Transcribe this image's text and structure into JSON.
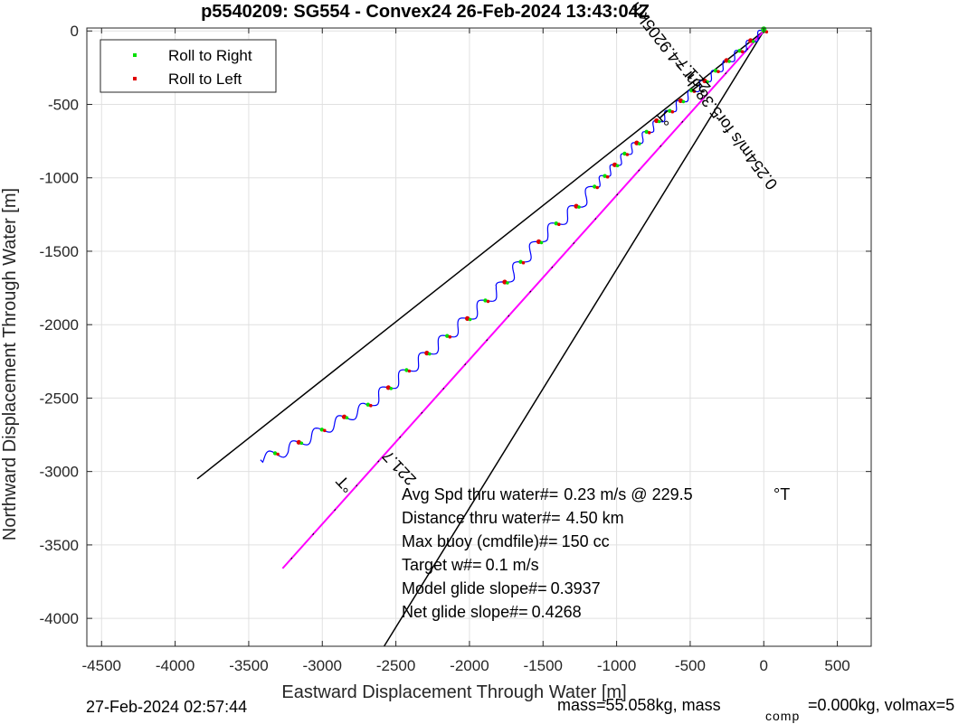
{
  "chart_data": {
    "type": "line",
    "title": "p5540209: SG554 - Convex24 26-Feb-2024 13:43:04Z",
    "xlabel": "Eastward Displacement Through Water [m]",
    "ylabel": "Northward Displacement Through Water [m]",
    "xlim": [
      -4600,
      730
    ],
    "ylim": [
      -4190,
      20
    ],
    "xticks": [
      -4500,
      -4000,
      -3500,
      -3000,
      -2500,
      -2000,
      -1500,
      -1000,
      -500,
      0,
      500
    ],
    "yticks": [
      0,
      -500,
      -1000,
      -1500,
      -2000,
      -2500,
      -3000,
      -3500,
      -4000
    ],
    "grid": true,
    "legend": {
      "position": "top-left",
      "entries": [
        "Roll to Right",
        "Roll to Left"
      ]
    },
    "track": {
      "start": [
        0,
        0
      ],
      "segment_points": [
        [
          0,
          0
        ],
        [
          -720,
          -620
        ],
        [
          -1150,
          -1060
        ]
      ],
      "spiral_points": [
        [
          -1150,
          -1060
        ],
        [
          -1250,
          -1180
        ],
        [
          -1500,
          -1400
        ],
        [
          -1800,
          -1760
        ],
        [
          -2100,
          -2040
        ],
        [
          -2400,
          -2300
        ],
        [
          -2700,
          -2560
        ],
        [
          -3000,
          -2720
        ],
        [
          -3250,
          -2860
        ],
        [
          -3420,
          -2920
        ]
      ]
    },
    "heading_line": {
      "points": [
        [
          0,
          0
        ],
        [
          -3270,
          -3660
        ]
      ]
    },
    "wedge_lines": [
      {
        "points": [
          [
            0,
            0
          ],
          [
            -3850,
            -3050
          ]
        ]
      },
      {
        "points": [
          [
            0,
            0
          ],
          [
            -2580,
            -4190
          ]
        ]
      }
    ],
    "annotations": [
      {
        "text": "221.7",
        "x": -2450,
        "y": -2950,
        "rotation": -133.3
      },
      {
        "text": "°T",
        "x": -2820,
        "y": -3060,
        "rotation": -133.3
      },
      {
        "text": "221.7",
        "x": -450,
        "y": -280,
        "rotation": -133.3
      },
      {
        "text": "°T",
        "x": -640,
        "y": -560,
        "rotation": -133.3
      },
      {
        "text": "0.254m/s for5.381hr =4.9205km",
        "x": -380,
        "y": -420,
        "rotation": -127.5
      }
    ],
    "stats": [
      {
        "label": "Avg Spd thru water#=",
        "value": "0.23 m/s @ 229.5",
        "unit": "°T"
      },
      {
        "label": "Distance thru water#=",
        "value": "4.50 km"
      },
      {
        "label": "Max buoy (cmdfile)#=",
        "value": "150 cc"
      },
      {
        "label": "Target w#=",
        "value": "0.1 m/s"
      },
      {
        "label": "Model glide slope#=",
        "value": "0.3937"
      },
      {
        "label": "Net glide slope#=",
        "value": "0.4268"
      }
    ],
    "colors": {
      "track": "#0000ff",
      "roll_right": "#00e000",
      "roll_left": "#e00000",
      "heading": "#ff00ff",
      "wedge": "#000000",
      "grid": "#e0e0e0"
    }
  },
  "footer": {
    "date": "27-Feb-2024 02:57:44",
    "mass_text": "mass=55.058kg, mass",
    "mass_sub": "comp",
    "mass_rest": "=0.000kg, volmax=5"
  }
}
